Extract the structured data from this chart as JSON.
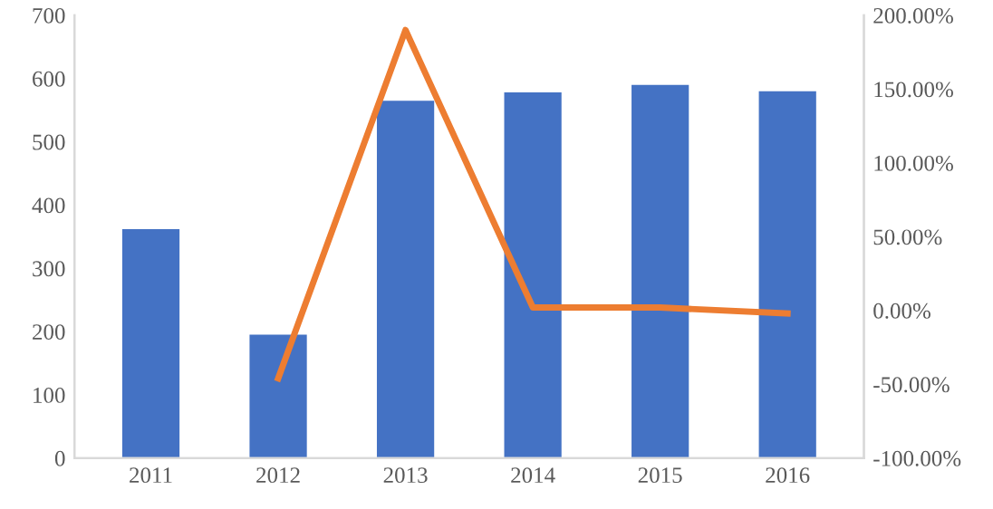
{
  "chart_data": {
    "type": "bar",
    "categories": [
      "2011",
      "2012",
      "2013",
      "2014",
      "2015",
      "2016"
    ],
    "series": [
      {
        "color": "#4472c4",
        "values": [
          362,
          195,
          565,
          578,
          590,
          580
        ]
      },
      {
        "type": "line",
        "axis": "y2",
        "color": "#ed7d31",
        "values": [
          null,
          -46,
          190,
          2,
          2,
          -2
        ]
      }
    ],
    "ylim": [
      0,
      700
    ],
    "yticks": [
      0,
      100,
      200,
      300,
      400,
      500,
      600,
      700
    ],
    "y2lim": [
      -100,
      200
    ],
    "y2ticks": [
      {
        "value": -100,
        "label": "-100.00%"
      },
      {
        "value": -50,
        "label": "-50.00%"
      },
      {
        "value": 0,
        "label": "0.00%"
      },
      {
        "value": 50,
        "label": "50.00%"
      },
      {
        "value": 100,
        "label": "100.00%"
      },
      {
        "value": 150,
        "label": "150.00%"
      },
      {
        "value": 200,
        "label": "200.00%"
      }
    ],
    "grid": false,
    "legend": false,
    "marker": "none"
  }
}
